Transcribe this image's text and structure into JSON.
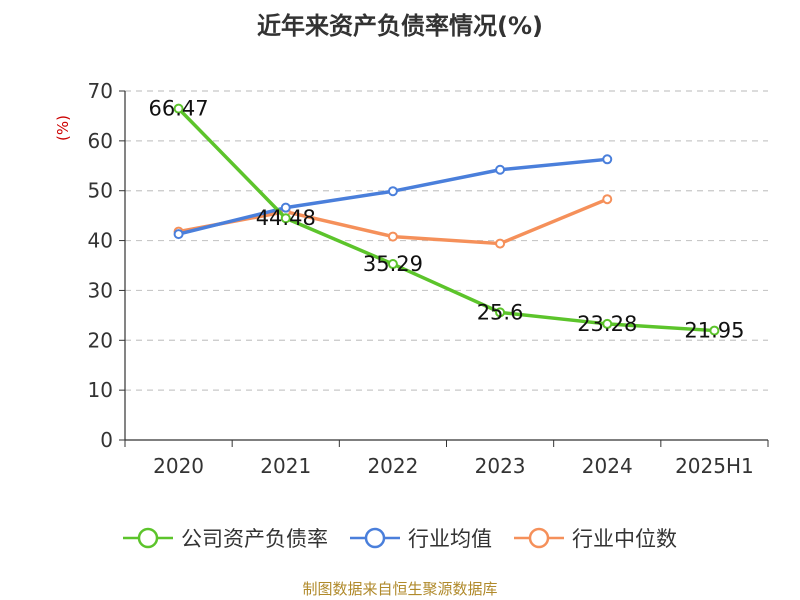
{
  "chart_data": {
    "type": "line",
    "title": "近年来资产负债率情况(%)",
    "ylabel": "(%)",
    "xlabel": "",
    "categories": [
      "2020",
      "2021",
      "2022",
      "2023",
      "2024",
      "2025H1"
    ],
    "ylim": [
      0,
      70
    ],
    "yticks": [
      0,
      10,
      20,
      30,
      40,
      50,
      60,
      70
    ],
    "grid": true,
    "legend_position": "bottom",
    "series": [
      {
        "name": "公司资产负债率",
        "color": "#5cc42b",
        "values": [
          66.47,
          44.48,
          35.29,
          25.6,
          23.28,
          21.95
        ],
        "labels": [
          "66.47",
          "44.48",
          "35.29",
          "25.6",
          "23.28",
          "21.95"
        ]
      },
      {
        "name": "行业均值",
        "color": "#4a7fdb",
        "values": [
          41.3,
          46.6,
          49.9,
          54.2,
          56.3,
          null
        ]
      },
      {
        "name": "行业中位数",
        "color": "#f5905a",
        "values": [
          41.8,
          45.8,
          40.8,
          39.4,
          48.3,
          null
        ]
      }
    ]
  },
  "source": "制图数据来自恒生聚源数据库"
}
